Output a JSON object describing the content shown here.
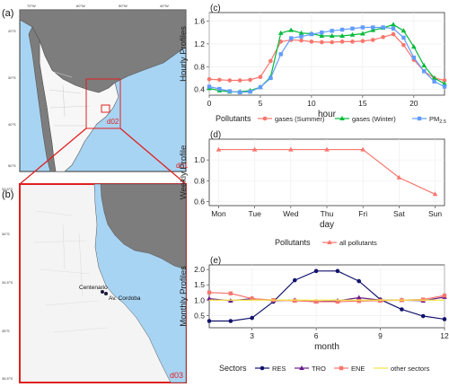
{
  "figure": {
    "maps": {
      "a": {
        "label": "(a)",
        "domain_labels": [
          "d01",
          "d02"
        ],
        "lon_ticks": [
          "70°W",
          "60°W",
          "50°W",
          "40°W"
        ],
        "lat_ticks": [
          "20°S",
          "30°S",
          "40°S",
          "50°S"
        ]
      },
      "b": {
        "label": "(b)",
        "domain_label": "d03",
        "lon_ticks": [
          "59°W",
          "58.5°W",
          "58°W"
        ],
        "lat_ticks": [
          "33.5°S",
          "34°S",
          "34.5°S",
          "35°S",
          "35.5°S"
        ],
        "stations": [
          {
            "name": "Centenario",
            "lon": -58.5,
            "lat": -34.6
          },
          {
            "name": "Av. Cordoba",
            "lon": -58.39,
            "lat": -34.6
          }
        ]
      },
      "colors": {
        "ocean": "#a8d4f3",
        "land_other": "#7d7d7d",
        "land_focus": "#f7f7f7",
        "domain_box": "#e02020",
        "station": "#1a1a3a"
      }
    },
    "panel_labels": [
      "(c)",
      "(d)",
      "(e)"
    ]
  },
  "chart_data": [
    {
      "panel": "(c)",
      "type": "line",
      "ylabel": "Hourly Profiles",
      "xlabel": "hour",
      "xlim": [
        0,
        23
      ],
      "ylim": [
        0.3,
        1.75
      ],
      "xticks": [
        0,
        5,
        10,
        15,
        20
      ],
      "yticks": [
        0.4,
        0.8,
        1.2,
        1.6
      ],
      "x": [
        0,
        1,
        2,
        3,
        4,
        5,
        6,
        7,
        8,
        9,
        10,
        11,
        12,
        13,
        14,
        15,
        16,
        17,
        18,
        19,
        20,
        21,
        22,
        23
      ],
      "series": [
        {
          "name": "gases (Summer)",
          "color": "#f8766d",
          "marker": "circle",
          "values": [
            0.58,
            0.57,
            0.56,
            0.56,
            0.57,
            0.62,
            0.9,
            1.24,
            1.27,
            1.26,
            1.24,
            1.23,
            1.23,
            1.24,
            1.24,
            1.25,
            1.27,
            1.32,
            1.37,
            1.18,
            0.92,
            0.72,
            0.6,
            0.56
          ]
        },
        {
          "name": "gases (Winter)",
          "color": "#00ba38",
          "marker": "triangle",
          "values": [
            0.42,
            0.38,
            0.36,
            0.36,
            0.38,
            0.44,
            0.62,
            1.39,
            1.44,
            1.39,
            1.38,
            1.34,
            1.34,
            1.34,
            1.36,
            1.38,
            1.44,
            1.48,
            1.54,
            1.43,
            1.15,
            0.82,
            0.6,
            0.5
          ]
        },
        {
          "name": "PM",
          "color": "#619cff",
          "marker": "square",
          "values": [
            0.45,
            0.41,
            0.37,
            0.35,
            0.36,
            0.44,
            0.6,
            1.02,
            1.3,
            1.33,
            1.37,
            1.4,
            1.43,
            1.45,
            1.47,
            1.49,
            1.49,
            1.49,
            1.47,
            1.31,
            0.96,
            0.72,
            0.54,
            0.45
          ]
        }
      ],
      "legend_title": "Pollutants",
      "legend_position": "bottom"
    },
    {
      "panel": "(d)",
      "type": "line",
      "ylabel": "Weekly Profile",
      "xlabel": "day",
      "categories": [
        "Mon",
        "Tue",
        "Wed",
        "Thu",
        "Fri",
        "Sat",
        "Sun"
      ],
      "ylim": [
        0.56,
        1.2
      ],
      "yticks": [
        0.6,
        0.8,
        1.0
      ],
      "series": [
        {
          "name": "all pollutants",
          "color": "#f8766d",
          "marker": "triangle",
          "values": [
            1.1,
            1.1,
            1.1,
            1.1,
            1.1,
            0.83,
            0.67
          ]
        }
      ],
      "legend_title": "Pollutants",
      "legend_position": "bottom"
    },
    {
      "panel": "(e)",
      "type": "line",
      "ylabel": "Monthly Profiles",
      "xlabel": "month",
      "xlim": [
        1,
        12
      ],
      "ylim": [
        0.1,
        2.15
      ],
      "xticks": [
        3,
        6,
        9,
        12
      ],
      "yticks": [
        0.5,
        1.0,
        1.5,
        2.0
      ],
      "x": [
        1,
        2,
        3,
        4,
        5,
        6,
        7,
        8,
        9,
        10,
        11,
        12
      ],
      "series": [
        {
          "name": "RES",
          "color": "#12126e",
          "marker": "circle",
          "values": [
            0.32,
            0.32,
            0.42,
            0.95,
            1.65,
            1.95,
            1.95,
            1.62,
            1.02,
            0.7,
            0.48,
            0.38
          ]
        },
        {
          "name": "TRO",
          "color": "#6a1b8a",
          "marker": "triangle",
          "values": [
            1.05,
            0.98,
            1.05,
            0.98,
            1.0,
            0.95,
            0.98,
            1.08,
            1.0,
            1.0,
            0.98,
            1.1
          ]
        },
        {
          "name": "ENE",
          "color": "#f8766d",
          "marker": "square",
          "values": [
            1.25,
            1.22,
            1.05,
            1.0,
            0.98,
            0.95,
            0.95,
            0.97,
            0.98,
            1.0,
            1.02,
            1.15
          ]
        },
        {
          "name": "other sectors",
          "color": "#f5e642",
          "marker": "none",
          "values": [
            1.0,
            1.0,
            1.0,
            1.0,
            1.0,
            1.0,
            1.0,
            1.0,
            1.0,
            1.0,
            1.0,
            1.0
          ]
        }
      ],
      "legend_title": "Sectors",
      "legend_position": "bottom"
    }
  ]
}
